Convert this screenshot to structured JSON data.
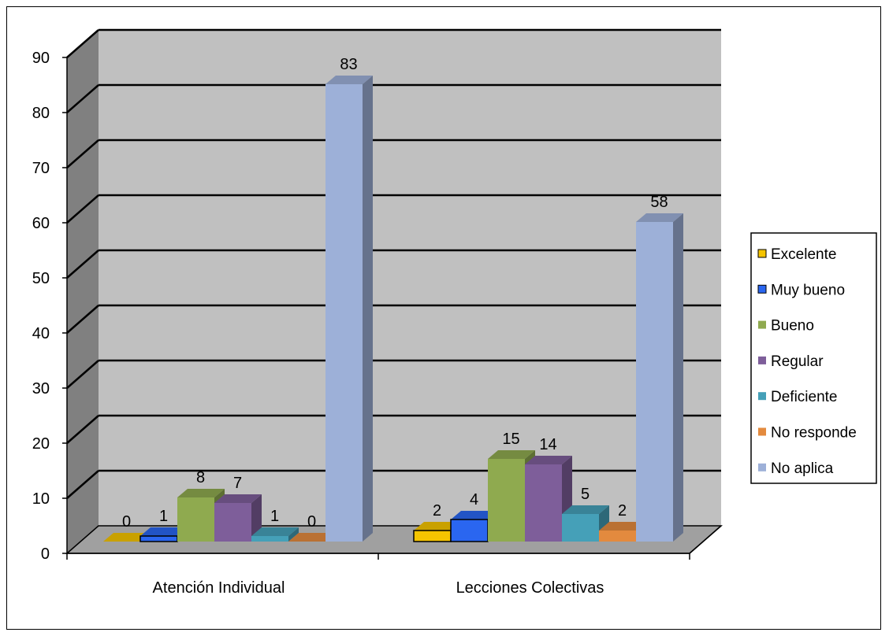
{
  "chart_data": {
    "type": "bar",
    "categories": [
      "Atención Individual",
      "Lecciones Colectivas"
    ],
    "series": [
      {
        "name": "Excelente",
        "values": [
          0,
          2
        ],
        "color": "#f5c400"
      },
      {
        "name": "Muy bueno",
        "values": [
          1,
          4
        ],
        "color": "#2a66f0"
      },
      {
        "name": "Bueno",
        "values": [
          8,
          15
        ],
        "color": "#8faa4f"
      },
      {
        "name": "Regular",
        "values": [
          7,
          14
        ],
        "color": "#7e5e9a"
      },
      {
        "name": "Deficiente",
        "values": [
          1,
          5
        ],
        "color": "#45a0b8"
      },
      {
        "name": "No responde",
        "values": [
          0,
          2
        ],
        "color": "#e38a3e"
      },
      {
        "name": "No aplica",
        "values": [
          83,
          58
        ],
        "color": "#9db0d8"
      }
    ],
    "y_ticks": [
      "0",
      "10",
      "20",
      "30",
      "40",
      "50",
      "60",
      "70",
      "80",
      "90"
    ],
    "ylim": [
      0,
      90
    ],
    "grid": true,
    "legend": "right",
    "style": "3d-clustered-column"
  }
}
